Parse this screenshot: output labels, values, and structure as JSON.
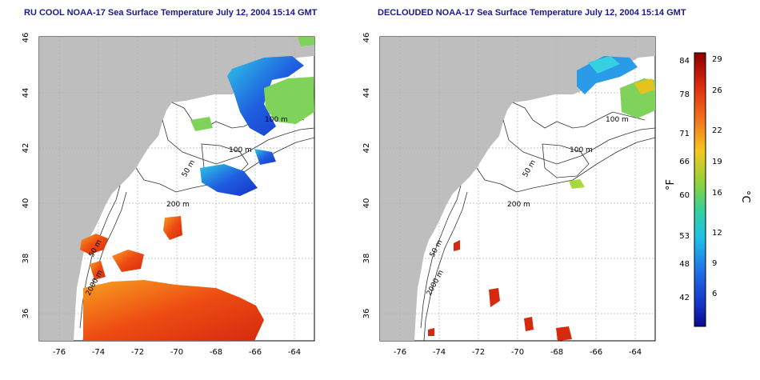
{
  "left_panel": {
    "title": "RU COOL NOAA-17 Sea Surface Temperature July 12, 2004 15:14 GMT",
    "x_ticks": [
      "-76",
      "-74",
      "-72",
      "-70",
      "-68",
      "-66",
      "-64"
    ],
    "y_ticks": [
      "36",
      "38",
      "40",
      "42",
      "44",
      "46"
    ],
    "contour_labels": [
      "100 m",
      "50 m",
      "200 m",
      "50 m",
      "2000 m",
      "100 m"
    ]
  },
  "right_panel": {
    "title": "DECLOUDED NOAA-17 Sea Surface Temperature July 12, 2004 15:14 GMT",
    "x_ticks": [
      "-76",
      "-74",
      "-72",
      "-70",
      "-68",
      "-66",
      "-64"
    ],
    "y_ticks": [
      "36",
      "38",
      "40",
      "42",
      "44",
      "46"
    ],
    "contour_labels": [
      "100 m",
      "50 m",
      "200 m",
      "50 m",
      "2000 m",
      "100 m"
    ]
  },
  "colorbar": {
    "f_unit": "°F",
    "c_unit": "°C",
    "f_ticks": [
      "84",
      "78",
      "71",
      "66",
      "60",
      "53",
      "48",
      "42"
    ],
    "c_ticks": [
      "29",
      "26",
      "22",
      "19",
      "16",
      "12",
      "9",
      "6"
    ]
  },
  "colors": {
    "land": "#bebebe",
    "title": "#1a1a8c",
    "grid": "#b4b4b4"
  }
}
